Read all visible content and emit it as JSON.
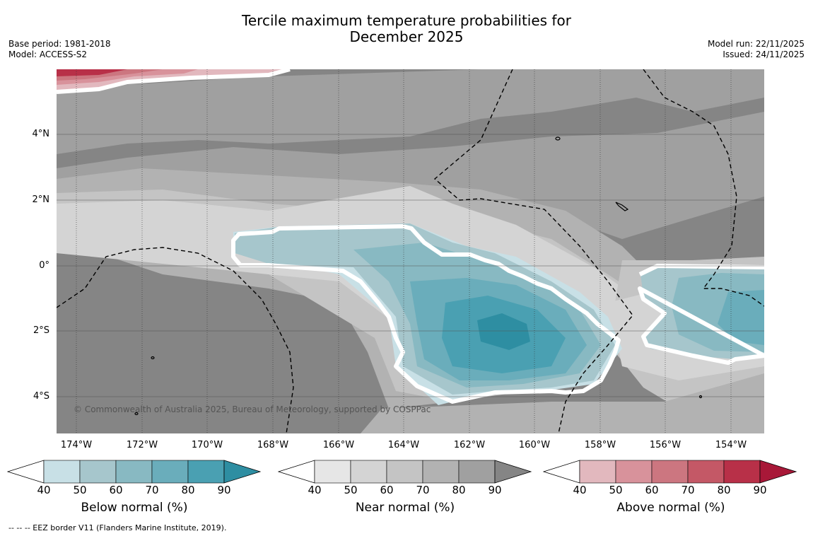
{
  "title_line1": "Tercile maximum temperature probabilities for",
  "title_line2": "December 2025",
  "base_period": "Base period: 1981-2018",
  "model": "Model: ACCESS-S2",
  "model_run": "Model run: 22/11/2025",
  "issued": "Issued: 24/11/2025",
  "lat_labels": [
    "4°N",
    "2°N",
    "0°",
    "2°S",
    "4°S"
  ],
  "lon_labels": [
    "174°W",
    "172°W",
    "170°W",
    "168°W",
    "166°W",
    "164°W",
    "162°W",
    "160°W",
    "158°W",
    "156°W",
    "154°W"
  ],
  "credit": "© Commonwealth of Australia 2025, Bureau of Meteorology, supported by COSPPac",
  "colorbars": [
    {
      "title": "Below normal (%)",
      "ticks": [
        "40",
        "50",
        "60",
        "70",
        "80",
        "90"
      ],
      "colors": [
        "#ffffff",
        "#c8e0e6",
        "#a6c6cc",
        "#88b9c2",
        "#6aadbb",
        "#4aa0b2",
        "#2e8ea2"
      ]
    },
    {
      "title": "Near normal (%)",
      "ticks": [
        "40",
        "50",
        "60",
        "70",
        "80",
        "90"
      ],
      "colors": [
        "#ffffff",
        "#e6e6e6",
        "#d4d4d4",
        "#c4c4c4",
        "#b2b2b2",
        "#a0a0a0",
        "#858585"
      ]
    },
    {
      "title": "Above normal (%)",
      "ticks": [
        "40",
        "50",
        "60",
        "70",
        "80",
        "90"
      ],
      "colors": [
        "#ffffff",
        "#e2b8be",
        "#d8929b",
        "#cc7680",
        "#c45866",
        "#b83048",
        "#a81838"
      ]
    }
  ],
  "footnote": "-- -- -- EEZ border V11 (Flanders Marine Institute, 2019)."
}
